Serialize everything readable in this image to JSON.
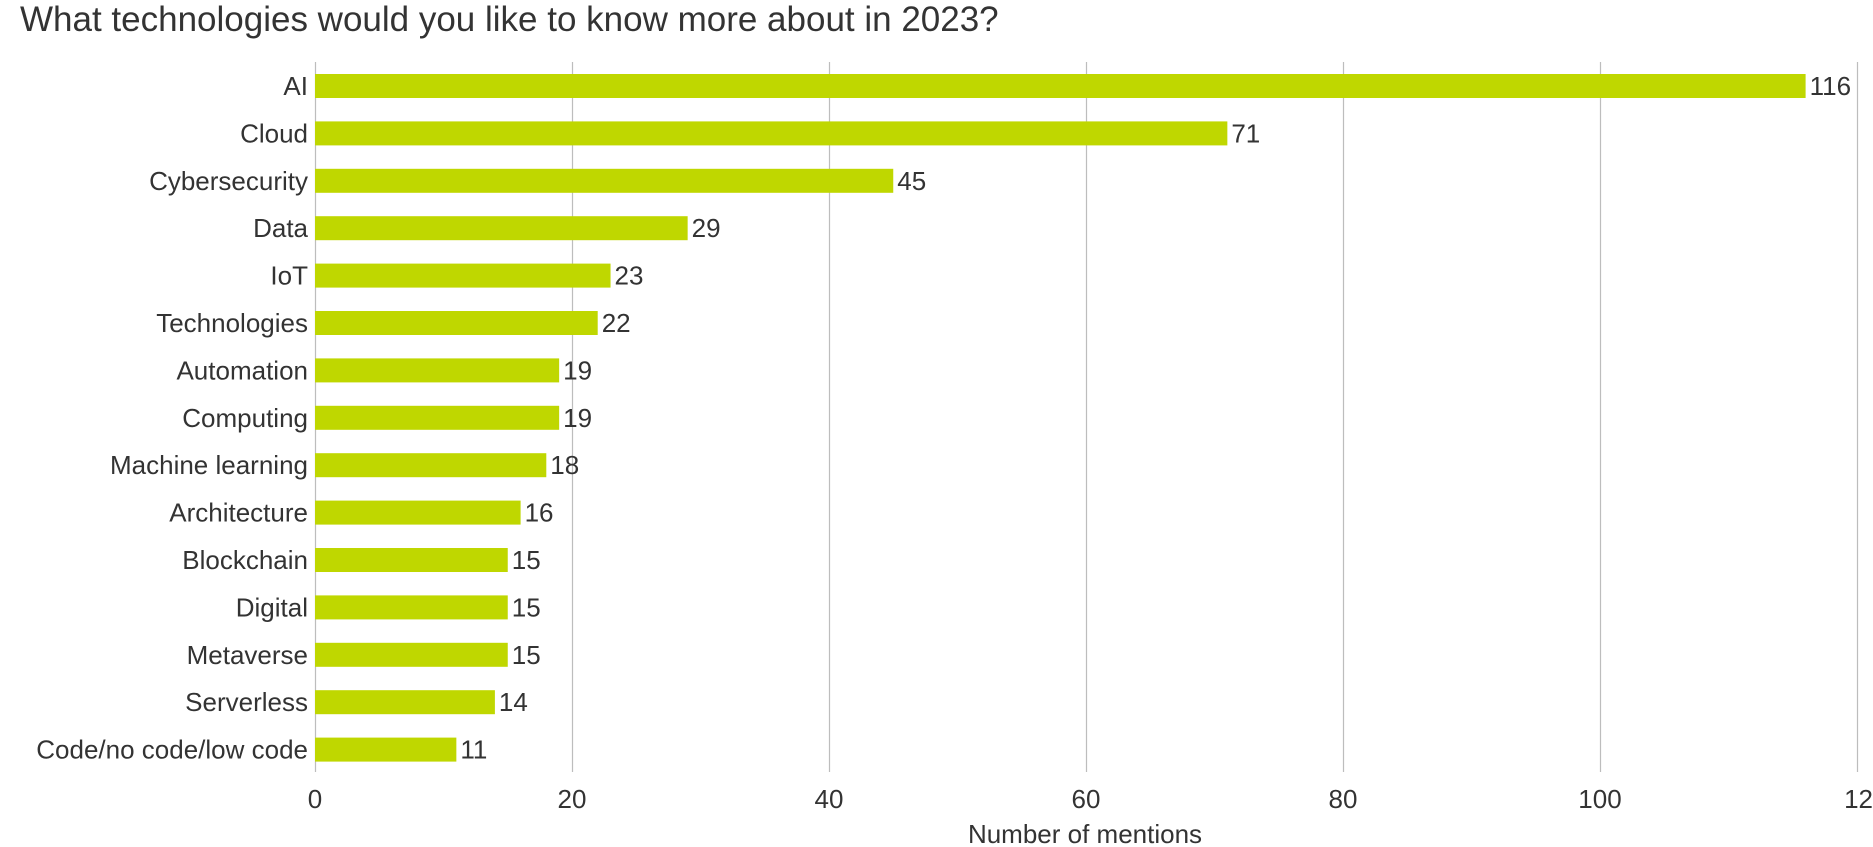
{
  "chart_data": {
    "type": "bar",
    "orientation": "horizontal",
    "title": "What technologies would you like to know more about in 2023?",
    "xlabel": "Number of mentions",
    "ylabel": "",
    "categories": [
      "AI",
      "Cloud",
      "Cybersecurity",
      "Data",
      "IoT",
      "Technologies",
      "Automation",
      "Computing",
      "Machine learning",
      "Architecture",
      "Blockchain",
      "Digital",
      "Metaverse",
      "Serverless",
      "Code/no code/low code"
    ],
    "values": [
      116,
      71,
      45,
      29,
      23,
      22,
      19,
      19,
      18,
      16,
      15,
      15,
      15,
      14,
      11
    ],
    "xlim": [
      0,
      120
    ],
    "xticks": [
      "0",
      "20",
      "40",
      "60",
      "80",
      "100",
      "12"
    ],
    "grid": "vertical",
    "legend": "none",
    "bar_color": "#bfd700",
    "grid_color": "#bdbdbd"
  }
}
